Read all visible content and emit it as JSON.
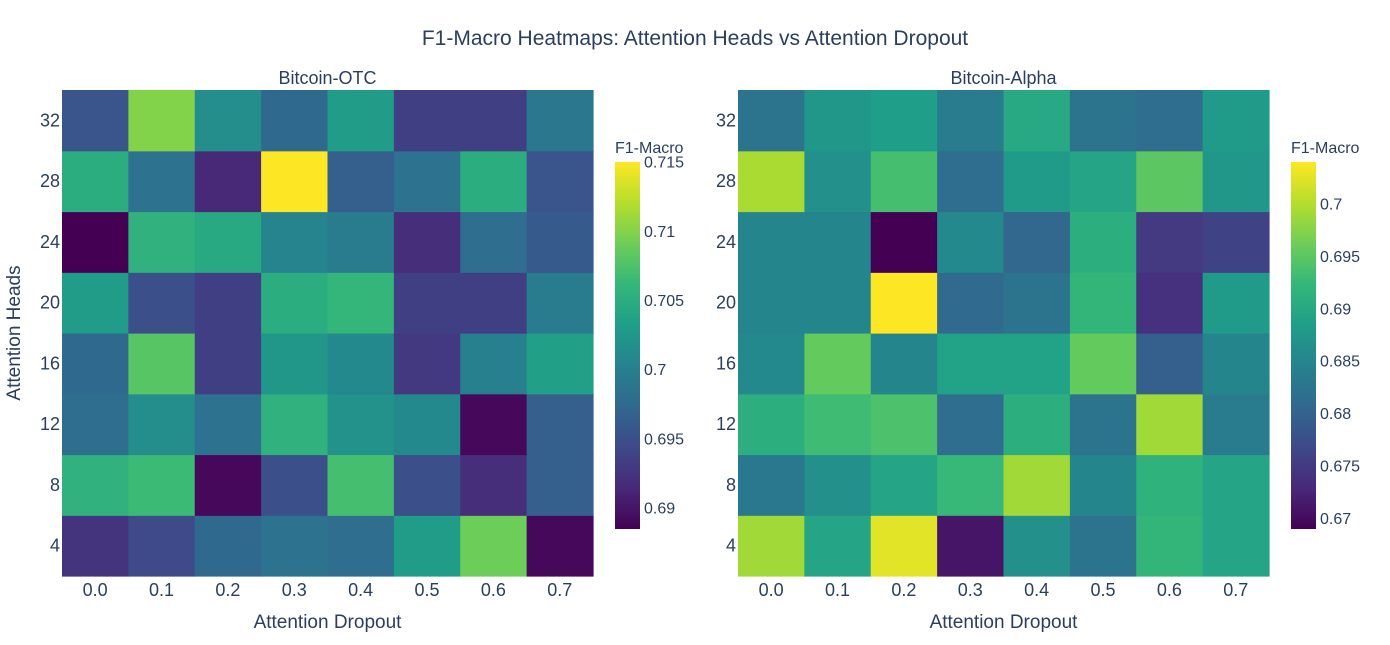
{
  "title": "F1-Macro Heatmaps: Attention Heads vs Attention Dropout",
  "colorscale": [
    "#440154",
    "#482878",
    "#3e4989",
    "#31688e",
    "#26828e",
    "#1f9e89",
    "#35b779",
    "#6ece58",
    "#b5de2b",
    "#fde725"
  ],
  "chart_data": [
    {
      "type": "heatmap",
      "title": "Bitcoin-OTC",
      "xlabel": "Attention Dropout",
      "ylabel": "Attention Heads",
      "x": [
        "0.0",
        "0.1",
        "0.2",
        "0.3",
        "0.4",
        "0.5",
        "0.6",
        "0.7"
      ],
      "y": [
        "4",
        "8",
        "12",
        "16",
        "20",
        "24",
        "28",
        "32"
      ],
      "z": [
        [
          0.6925,
          0.6945,
          0.6975,
          0.6985,
          0.698,
          0.703,
          0.709,
          0.689
        ],
        [
          0.7055,
          0.7065,
          0.689,
          0.695,
          0.707,
          0.695,
          0.692,
          0.6965
        ],
        [
          0.698,
          0.7015,
          0.6985,
          0.7055,
          0.702,
          0.701,
          0.689,
          0.6965
        ],
        [
          0.6975,
          0.708,
          0.6935,
          0.7025,
          0.701,
          0.693,
          0.7,
          0.7035
        ],
        [
          0.703,
          0.695,
          0.6935,
          0.705,
          0.706,
          0.6935,
          0.6935,
          0.6995
        ],
        [
          0.6885,
          0.7055,
          0.7045,
          0.7005,
          0.6995,
          0.692,
          0.698,
          0.696
        ],
        [
          0.705,
          0.6985,
          0.6915,
          0.715,
          0.6965,
          0.6985,
          0.705,
          0.6955
        ],
        [
          0.6955,
          0.71,
          0.7015,
          0.6975,
          0.703,
          0.6935,
          0.6935,
          0.699
        ]
      ],
      "zmin": 0.6885,
      "zmax": 0.715,
      "colorbar_title": "F1-Macro",
      "colorbar_ticks": [
        0.69,
        0.695,
        0.7,
        0.705,
        0.71,
        0.715
      ],
      "colorbar_tick_labels": [
        "0.69",
        "0.695",
        "0.7",
        "0.705",
        "0.71",
        "0.715"
      ]
    },
    {
      "type": "heatmap",
      "title": "Bitcoin-Alpha",
      "xlabel": "Attention Dropout",
      "ylabel": "",
      "x": [
        "0.0",
        "0.1",
        "0.2",
        "0.3",
        "0.4",
        "0.5",
        "0.6",
        "0.7"
      ],
      "y": [
        "4",
        "8",
        "12",
        "16",
        "20",
        "24",
        "28",
        "32"
      ],
      "z": [
        [
          0.699,
          0.6895,
          0.7025,
          0.671,
          0.6865,
          0.6825,
          0.692,
          0.6895
        ],
        [
          0.683,
          0.6865,
          0.6895,
          0.6925,
          0.699,
          0.685,
          0.6915,
          0.6895
        ],
        [
          0.691,
          0.693,
          0.694,
          0.6815,
          0.691,
          0.6825,
          0.699,
          0.6835
        ],
        [
          0.6855,
          0.6955,
          0.685,
          0.689,
          0.689,
          0.6955,
          0.6795,
          0.685
        ],
        [
          0.685,
          0.685,
          0.704,
          0.681,
          0.6825,
          0.692,
          0.674,
          0.688
        ],
        [
          0.685,
          0.685,
          0.669,
          0.6855,
          0.6805,
          0.691,
          0.675,
          0.676
        ],
        [
          0.6995,
          0.6865,
          0.6935,
          0.6815,
          0.688,
          0.6895,
          0.695,
          0.6875
        ],
        [
          0.6825,
          0.6875,
          0.6885,
          0.6835,
          0.69,
          0.6825,
          0.6815,
          0.688
        ]
      ],
      "zmin": 0.669,
      "zmax": 0.704,
      "colorbar_title": "F1-Macro",
      "colorbar_ticks": [
        0.67,
        0.675,
        0.68,
        0.685,
        0.69,
        0.695,
        0.7
      ],
      "colorbar_tick_labels": [
        "0.67",
        "0.675",
        "0.68",
        "0.685",
        "0.69",
        "0.695",
        "0.7"
      ]
    }
  ]
}
